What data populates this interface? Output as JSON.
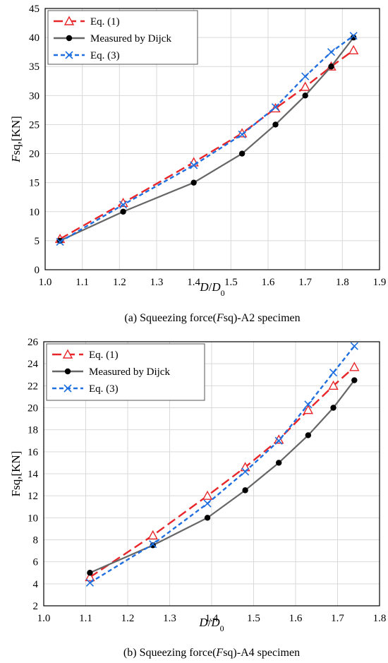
{
  "chart_data": [
    {
      "type": "line",
      "caption": "(a)  Squeezing force(Fsq)-A2 specimen",
      "caption_parts": [
        "(a)  Squeezing force(",
        "F",
        "sq)-A2 specimen"
      ],
      "xlabel_parts": [
        "D",
        "/",
        "D",
        "0"
      ],
      "ylabel_parts": [
        "F",
        "sq,[KN]"
      ],
      "xlim": [
        1.0,
        1.9
      ],
      "ylim": [
        0,
        45
      ],
      "xticks": [
        1.0,
        1.1,
        1.2,
        1.3,
        1.4,
        1.5,
        1.6,
        1.7,
        1.8,
        1.9
      ],
      "yticks": [
        0,
        5,
        10,
        15,
        20,
        25,
        30,
        35,
        40,
        45
      ],
      "xtick_labels": [
        "1.0",
        "1.1",
        "1.2",
        "1.3",
        "1.4",
        "1.5",
        "1.6",
        "1.7",
        "1.8",
        "1.9"
      ],
      "ytick_labels": [
        "0",
        "5",
        "10",
        "15",
        "20",
        "25",
        "30",
        "35",
        "40",
        "45"
      ],
      "grid": true,
      "legend_position": "top-left",
      "series": [
        {
          "name": "Eq. (1)",
          "color": "#e8262a",
          "marker": "triangle",
          "dash": "long-dash",
          "x": [
            1.04,
            1.21,
            1.4,
            1.53,
            1.62,
            1.7,
            1.77,
            1.83
          ],
          "y": [
            5.3,
            11.5,
            18.5,
            23.5,
            27.8,
            31.5,
            35.0,
            37.8
          ]
        },
        {
          "name": "Measured by Dijck",
          "color": "#666666",
          "marker": "dot",
          "dash": "solid",
          "x": [
            1.04,
            1.21,
            1.4,
            1.53,
            1.62,
            1.7,
            1.77,
            1.83
          ],
          "y": [
            5.0,
            10.0,
            15.0,
            20.0,
            25.0,
            30.0,
            35.0,
            40.0
          ]
        },
        {
          "name": "Eq. (3)",
          "color": "#1f6fe0",
          "marker": "x",
          "dash": "short-dash",
          "x": [
            1.04,
            1.21,
            1.4,
            1.53,
            1.62,
            1.7,
            1.77,
            1.83
          ],
          "y": [
            4.8,
            11.2,
            18.0,
            23.3,
            28.0,
            33.3,
            37.5,
            40.3
          ]
        }
      ]
    },
    {
      "type": "line",
      "caption": "(b)  Squeezing force(Fsq)-A4 specimen",
      "caption_parts": [
        "(b)  Squeezing force(",
        "F",
        "sq)-A4 specimen"
      ],
      "xlabel_parts": [
        "D",
        "/",
        "D",
        "0"
      ],
      "ylabel_parts": [
        "",
        "Fsq,[KN]"
      ],
      "xlim": [
        1.0,
        1.8
      ],
      "ylim": [
        2,
        26
      ],
      "xticks": [
        1.0,
        1.1,
        1.2,
        1.3,
        1.4,
        1.5,
        1.6,
        1.7,
        1.8
      ],
      "yticks": [
        2,
        4,
        6,
        8,
        10,
        12,
        14,
        16,
        18,
        20,
        22,
        24,
        26
      ],
      "xtick_labels": [
        "1.0",
        "1.1",
        "1.2",
        "1.3",
        "1.4",
        "1.5",
        "1.6",
        "1.7",
        "1.8"
      ],
      "ytick_labels": [
        "2",
        "4",
        "6",
        "8",
        "10",
        "12",
        "14",
        "16",
        "18",
        "20",
        "22",
        "24",
        "26"
      ],
      "grid": true,
      "legend_position": "top-left",
      "series": [
        {
          "name": "Eq. (1)",
          "color": "#e8262a",
          "marker": "triangle",
          "dash": "long-dash",
          "x": [
            1.11,
            1.26,
            1.39,
            1.48,
            1.56,
            1.63,
            1.69,
            1.74
          ],
          "y": [
            4.6,
            8.4,
            12.0,
            14.6,
            17.1,
            19.8,
            22.0,
            23.7
          ]
        },
        {
          "name": "Measured by Dijck",
          "color": "#666666",
          "marker": "dot",
          "dash": "solid",
          "x": [
            1.11,
            1.26,
            1.39,
            1.48,
            1.56,
            1.63,
            1.69,
            1.74
          ],
          "y": [
            5.0,
            7.5,
            10.0,
            12.5,
            15.0,
            17.5,
            20.0,
            22.5
          ]
        },
        {
          "name": "Eq. (3)",
          "color": "#1f6fe0",
          "marker": "x",
          "dash": "short-dash",
          "x": [
            1.11,
            1.26,
            1.39,
            1.48,
            1.56,
            1.63,
            1.69,
            1.74
          ],
          "y": [
            4.1,
            7.6,
            11.3,
            14.2,
            17.0,
            20.3,
            23.2,
            25.6
          ]
        }
      ]
    }
  ]
}
